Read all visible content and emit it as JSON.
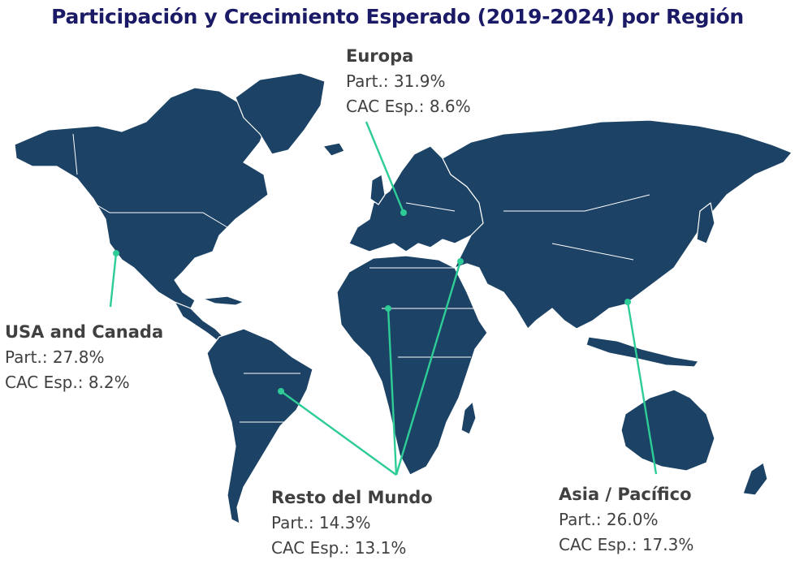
{
  "title": "Participación y Crecimiento Esperado (2019-2024) por Región",
  "colors": {
    "land": "#1c4365",
    "borders": "#ffffff",
    "arrow": "#2ecc96",
    "title": "#1a1a66",
    "label_text": "#404040"
  },
  "regions": [
    {
      "id": "usa_canada",
      "name": "USA and Canada",
      "share": "Part.: 27.8%",
      "cagr": "CAC Esp.: 8.2%"
    },
    {
      "id": "europe",
      "name": "Europa",
      "share": "Part.: 31.9%",
      "cagr": "CAC Esp.: 8.6%"
    },
    {
      "id": "rest_of_world",
      "name": "Resto del Mundo",
      "share": "Part.: 14.3%",
      "cagr": "CAC Esp.: 13.1%"
    },
    {
      "id": "asia_pacific",
      "name": "Asia / Pacífico",
      "share": "Part.: 26.0%",
      "cagr": "CAC Esp.: 17.3%"
    }
  ]
}
